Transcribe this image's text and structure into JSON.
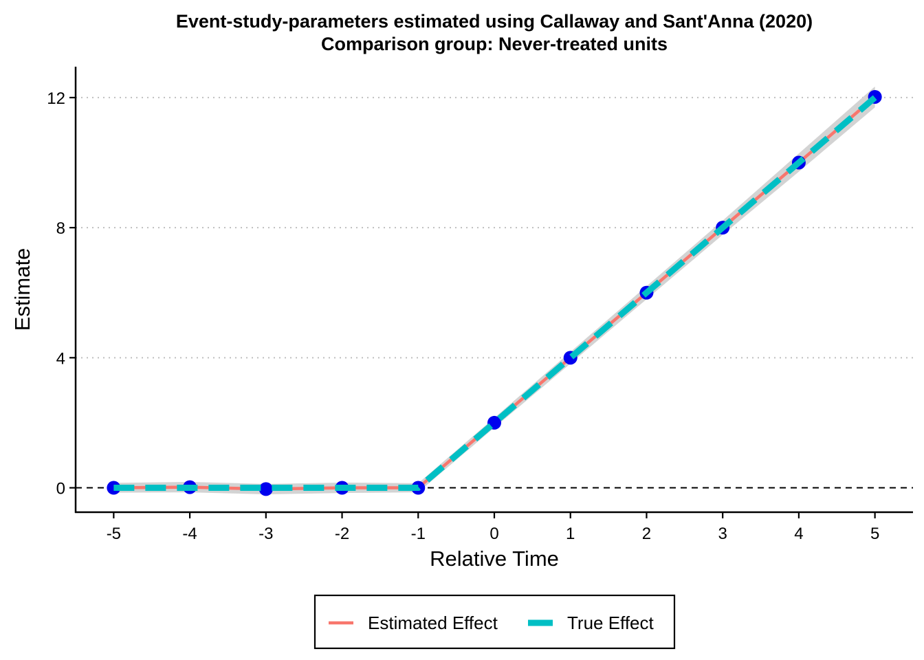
{
  "chart_data": {
    "type": "line",
    "title": "Event-study-parameters estimated using Callaway and Sant'Anna (2020)",
    "subtitle": "Comparison group: Never-treated units",
    "xlabel": "Relative Time",
    "ylabel": "Estimate",
    "x": [
      -5,
      -4,
      -3,
      -2,
      -1,
      0,
      1,
      2,
      3,
      4,
      5
    ],
    "xlim": [
      -5.5,
      5.5
    ],
    "ylim": [
      -0.75,
      12.95
    ],
    "yticks": [
      0,
      4,
      8,
      12
    ],
    "ytick_labels": [
      "0",
      "4",
      "8",
      "12"
    ],
    "xtick_labels": [
      "-5",
      "-4",
      "-3",
      "-2",
      "-1",
      "0",
      "1",
      "2",
      "3",
      "4",
      "5"
    ],
    "grid": "horizontal dotted at y ticks",
    "reference_line": {
      "y": 0,
      "style": "dashed",
      "color": "#000000"
    },
    "series": [
      {
        "name": "Estimated Effect",
        "color": "#F8766D",
        "style": "solid",
        "values": [
          0.0,
          0.02,
          -0.04,
          0.0,
          0.0,
          2.0,
          4.0,
          6.0,
          8.0,
          10.0,
          12.02
        ],
        "ci_lower": [
          -0.15,
          -0.14,
          -0.2,
          -0.16,
          -0.14,
          1.85,
          3.82,
          5.8,
          7.78,
          9.72,
          11.7
        ],
        "ci_upper": [
          0.15,
          0.18,
          0.12,
          0.16,
          0.14,
          2.15,
          4.18,
          6.2,
          8.22,
          10.28,
          12.34
        ],
        "points_color": "#0000EE"
      },
      {
        "name": "True Effect",
        "color": "#00BFC4",
        "style": "dashed",
        "values": [
          0,
          0,
          0,
          0,
          0,
          2,
          4,
          6,
          8,
          10,
          12
        ]
      }
    ],
    "legend_position": "bottom",
    "ci_color": "#D3D3D3"
  }
}
